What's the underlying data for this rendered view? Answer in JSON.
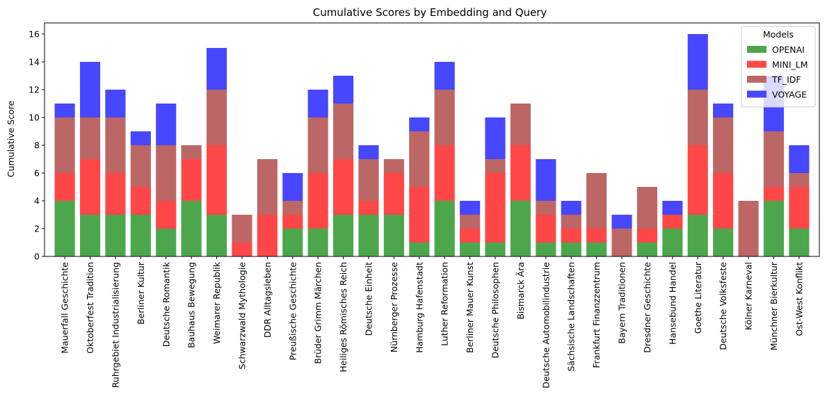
{
  "chart_data": {
    "type": "bar",
    "stacked": true,
    "title": "Cumulative Scores by Embedding and Query",
    "xlabel": "",
    "ylabel": "Cumulative Score",
    "ylim": [
      0,
      16.8
    ],
    "yticks": [
      0,
      2,
      4,
      6,
      8,
      10,
      12,
      14,
      16
    ],
    "grid": false,
    "legend": {
      "title": "Models",
      "placement": "top-right"
    },
    "categories": [
      "Mauerfall Geschichte",
      "Oktoberfest Tradition",
      "Ruhrgebiet Industrialisierung",
      "Berliner Kultur",
      "Deutsche Romantik",
      "Bauhaus Bewegung",
      "Weimarer Republik",
      "Schwarzwald Mythologie",
      "DDR Alltagsleben",
      "Preußische Geschichte",
      "Brüder Grimm Märchen",
      "Heiliges Römisches Reich",
      "Deutsche Einheit",
      "Nürnberger Prozesse",
      "Hamburg Hafenstadt",
      "Luther Reformation",
      "Berliner Mauer Kunst",
      "Deutsche Philosophen",
      "Bismarck Ära",
      "Deutsche Automobilindustrie",
      "Sächsische Landschaften",
      "Frankfurt Finanzzentrum",
      "Bayern Traditionen",
      "Dresdner Geschichte",
      "Hansebund Handel",
      "Goethe Literatur",
      "Deutsche Volksfeste",
      "Kölner Karneval",
      "Münchner Bierkultur",
      "Ost-West Konflikt"
    ],
    "series": [
      {
        "name": "OPENAI",
        "color": "#4ca64c",
        "values": [
          4,
          3,
          3,
          3,
          2,
          4,
          3,
          0,
          0,
          2,
          2,
          3,
          3,
          3,
          1,
          4,
          1,
          1,
          4,
          1,
          1,
          1,
          0,
          1,
          2,
          3,
          2,
          0,
          4,
          2
        ]
      },
      {
        "name": "MINI_LM",
        "color": "#ff4747",
        "values": [
          2,
          4,
          3,
          2,
          2,
          3,
          5,
          1,
          3,
          1,
          4,
          4,
          1,
          3,
          4,
          4,
          1,
          5,
          4,
          2,
          1,
          1,
          0,
          1,
          1,
          5,
          4,
          0,
          1,
          3
        ]
      },
      {
        "name": "TF_IDF",
        "color": "#bd6666",
        "values": [
          4,
          3,
          4,
          3,
          4,
          1,
          4,
          2,
          4,
          1,
          4,
          4,
          3,
          1,
          4,
          4,
          1,
          1,
          3,
          1,
          1,
          4,
          2,
          3,
          0,
          4,
          4,
          4,
          4,
          1
        ]
      },
      {
        "name": "VOYAGE",
        "color": "#4747ff",
        "values": [
          1,
          4,
          2,
          1,
          3,
          0,
          3,
          0,
          0,
          2,
          2,
          2,
          1,
          0,
          1,
          2,
          1,
          3,
          0,
          3,
          1,
          0,
          1,
          0,
          1,
          4,
          1,
          0,
          4,
          2
        ]
      }
    ]
  }
}
